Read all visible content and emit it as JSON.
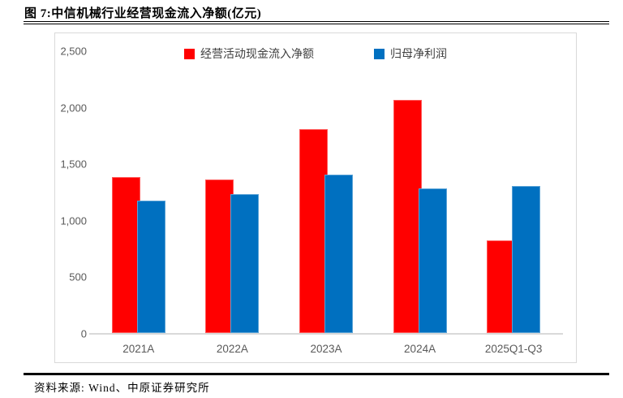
{
  "figure": {
    "title": "图 7:中信机械行业经营现金流入净额(亿元)",
    "source_label": "资料来源:",
    "source_text": "Wind、中原证券研究所"
  },
  "chart_data": {
    "type": "bar",
    "title": "中信机械行业经营现金流入净额(亿元)",
    "categories": [
      "2021A",
      "2022A",
      "2023A",
      "2024A",
      "2025Q1-Q3"
    ],
    "series": [
      {
        "name": "经营活动现金流入净额",
        "color": "#FF0000",
        "values": [
          1380,
          1360,
          1800,
          2060,
          820
        ]
      },
      {
        "name": "归母净利润",
        "color": "#0070C0",
        "values": [
          1170,
          1230,
          1400,
          1280,
          1300
        ]
      }
    ],
    "xlabel": "",
    "ylabel": "",
    "ylim": [
      0,
      2500
    ],
    "ytick_values": [
      0,
      500,
      1000,
      1500,
      2000,
      2500
    ],
    "ytick_labels": [
      "0",
      "500",
      "1,000",
      "1,500",
      "2,000",
      "2,500"
    ],
    "grid": false,
    "legend_position": "top-center",
    "axis_line_color": "#D9D9D9",
    "tick_label_color": "#595959"
  }
}
